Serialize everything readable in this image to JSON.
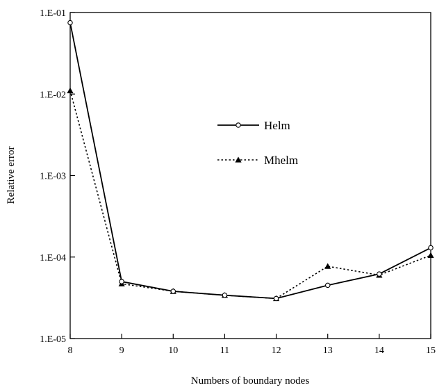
{
  "chart_data": {
    "type": "line",
    "xlabel": "Numbers of boundary nodes",
    "ylabel": "Relative error",
    "yscale": "log",
    "xlim": [
      8,
      15
    ],
    "ylim": [
      1e-05,
      0.1
    ],
    "x_ticks": [
      "8",
      "9",
      "10",
      "11",
      "12",
      "13",
      "14",
      "15"
    ],
    "y_ticks": [
      "1.E-05",
      "1.E-04",
      "1.E-03",
      "1.E-02",
      "1.E-01"
    ],
    "legend_position": "center-right",
    "grid": false,
    "x": [
      8,
      9,
      10,
      11,
      12,
      13,
      14,
      15
    ],
    "series": [
      {
        "name": "Helm",
        "marker": "circle",
        "line": "solid",
        "color": "#000000",
        "values": [
          0.075,
          5e-05,
          3.8e-05,
          3.4e-05,
          3.1e-05,
          4.5e-05,
          6.2e-05,
          0.00013
        ]
      },
      {
        "name": "Mhelm",
        "marker": "triangle",
        "line": "dotted",
        "color": "#000000",
        "values": [
          0.011,
          4.7e-05,
          3.8e-05,
          3.4e-05,
          3.1e-05,
          7.7e-05,
          6e-05,
          0.000105
        ]
      }
    ]
  }
}
